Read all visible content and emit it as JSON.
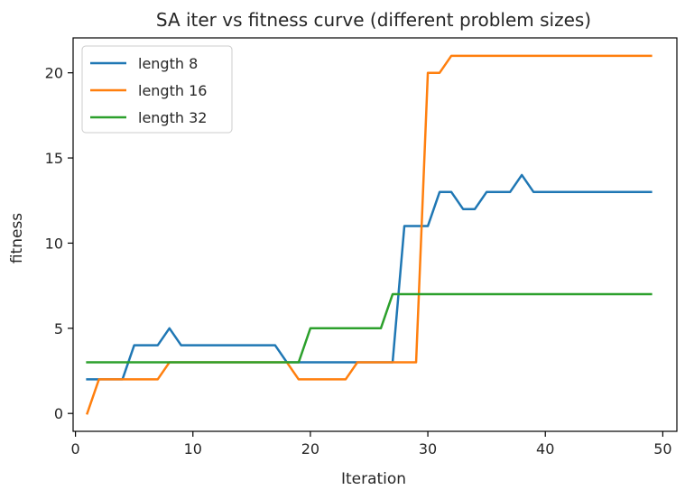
{
  "chart_data": {
    "type": "line",
    "title": "SA iter vs fitness curve (different problem sizes)",
    "xlabel": "Iteration",
    "ylabel": "fitness",
    "xlim": [
      -0.2,
      51.2
    ],
    "ylim": [
      -1.05,
      22.05
    ],
    "xticks": [
      0,
      10,
      20,
      30,
      40,
      50
    ],
    "yticks": [
      0,
      5,
      10,
      15,
      20
    ],
    "grid": false,
    "legend": "upper left",
    "x": [
      1,
      2,
      3,
      4,
      5,
      6,
      7,
      8,
      9,
      10,
      11,
      12,
      13,
      14,
      15,
      16,
      17,
      18,
      19,
      20,
      21,
      22,
      23,
      24,
      25,
      26,
      27,
      28,
      29,
      30,
      31,
      32,
      33,
      34,
      35,
      36,
      37,
      38,
      39,
      40,
      41,
      42,
      43,
      44,
      45,
      46,
      47,
      48,
      49
    ],
    "series": [
      {
        "name": "length 8",
        "color": "#1f77b4",
        "values": [
          2,
          2,
          2,
          2,
          4,
          4,
          4,
          5,
          4,
          4,
          4,
          4,
          4,
          4,
          4,
          4,
          4,
          3,
          3,
          3,
          3,
          3,
          3,
          3,
          3,
          3,
          3,
          11,
          11,
          11,
          13,
          13,
          12,
          12,
          13,
          13,
          13,
          14,
          13,
          13,
          13,
          13,
          13,
          13,
          13,
          13,
          13,
          13,
          13
        ]
      },
      {
        "name": "length 16",
        "color": "#ff7f0e",
        "values": [
          0,
          2,
          2,
          2,
          2,
          2,
          2,
          3,
          3,
          3,
          3,
          3,
          3,
          3,
          3,
          3,
          3,
          3,
          2,
          2,
          2,
          2,
          2,
          3,
          3,
          3,
          3,
          3,
          3,
          20,
          20,
          21,
          21,
          21,
          21,
          21,
          21,
          21,
          21,
          21,
          21,
          21,
          21,
          21,
          21,
          21,
          21,
          21,
          21
        ]
      },
      {
        "name": "length 32",
        "color": "#2ca02c",
        "values": [
          3,
          3,
          3,
          3,
          3,
          3,
          3,
          3,
          3,
          3,
          3,
          3,
          3,
          3,
          3,
          3,
          3,
          3,
          3,
          5,
          5,
          5,
          5,
          5,
          5,
          5,
          7,
          7,
          7,
          7,
          7,
          7,
          7,
          7,
          7,
          7,
          7,
          7,
          7,
          7,
          7,
          7,
          7,
          7,
          7,
          7,
          7,
          7,
          7
        ]
      }
    ]
  }
}
